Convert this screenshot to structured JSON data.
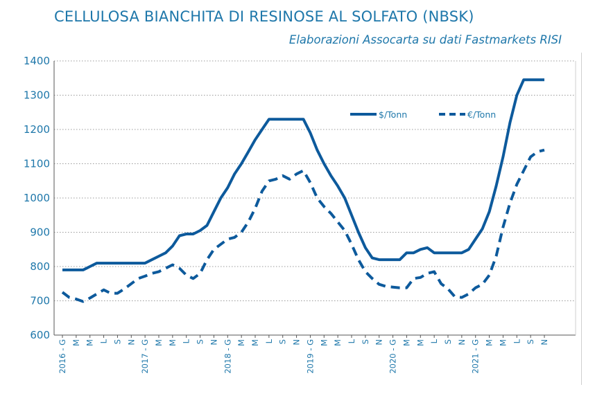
{
  "chart_data": {
    "type": "line",
    "title": "CELLULOSA BIANCHITA DI RESINOSE AL SOLFATO (NBSK)",
    "subtitle": "Elaborazioni Assocarta su dati Fastmarkets RISI",
    "ylim": [
      600,
      1400
    ],
    "yticks": [
      600,
      700,
      800,
      900,
      1000,
      1100,
      1200,
      1300,
      1400
    ],
    "xticklabels": [
      "2016 - G",
      "M",
      "M",
      "L",
      "S",
      "N",
      "2017 - G",
      "M",
      "M",
      "L",
      "S",
      "N",
      "2018 - G",
      "M",
      "M",
      "L",
      "S",
      "N",
      "2019 - G",
      "M",
      "M",
      "L",
      "S",
      "N",
      "2020 - G",
      "M",
      "M",
      "L",
      "S",
      "N",
      "2021 - G",
      "M",
      "M",
      "L",
      "S",
      "N"
    ],
    "grid": true,
    "legend": "top-right",
    "colors": {
      "series": "#0d5a9c",
      "text": "#1e77aa",
      "grid": "#999999"
    },
    "series": [
      {
        "name": "$/Tonn",
        "style": "solid",
        "values": [
          790,
          790,
          790,
          790,
          800,
          810,
          810,
          810,
          810,
          810,
          810,
          810,
          810,
          820,
          830,
          840,
          860,
          890,
          895,
          895,
          905,
          920,
          960,
          1000,
          1030,
          1070,
          1100,
          1135,
          1170,
          1200,
          1230,
          1230,
          1230,
          1230,
          1230,
          1230,
          1190,
          1140,
          1100,
          1065,
          1035,
          1000,
          950,
          900,
          855,
          825,
          820,
          820,
          820,
          820,
          840,
          840,
          850,
          855,
          840,
          840,
          840,
          840,
          840,
          850,
          880,
          910,
          960,
          1035,
          1120,
          1220,
          1300,
          1345,
          1345,
          1345,
          1345
        ]
      },
      {
        "name": "€/Tonn",
        "style": "dashed",
        "values": [
          725,
          710,
          705,
          698,
          708,
          720,
          732,
          722,
          722,
          735,
          750,
          765,
          772,
          780,
          785,
          795,
          805,
          795,
          775,
          765,
          780,
          820,
          850,
          865,
          880,
          885,
          900,
          930,
          970,
          1020,
          1050,
          1055,
          1065,
          1055,
          1070,
          1080,
          1045,
          1000,
          975,
          955,
          930,
          905,
          865,
          820,
          785,
          765,
          748,
          742,
          740,
          738,
          738,
          765,
          768,
          780,
          785,
          750,
          735,
          712,
          710,
          720,
          738,
          748,
          775,
          830,
          915,
          985,
          1040,
          1080,
          1120,
          1135,
          1140
        ]
      }
    ]
  }
}
